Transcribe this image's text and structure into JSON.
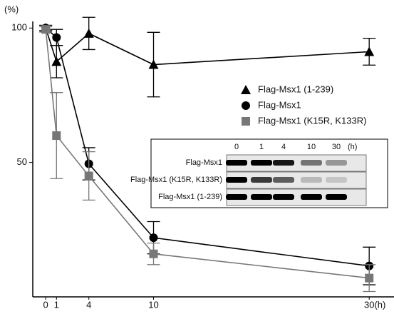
{
  "chart_data": {
    "type": "line",
    "y_unit": "(%)",
    "x": [
      0,
      1,
      4,
      10,
      30
    ],
    "xlim": [
      -1.2,
      32.3
    ],
    "ylim": [
      0,
      103
    ],
    "xticks": [
      0,
      1,
      4,
      10,
      {
        "value": 30,
        "label": "30(h)"
      }
    ],
    "yticks": [
      50,
      100
    ],
    "series": [
      {
        "name": "Flag-Msx1 (1-239)",
        "color": "#000000",
        "marker": "triangle",
        "values": [
          100,
          87.5,
          98,
          86.4,
          91.2
        ],
        "errors": [
          1,
          6,
          6,
          12,
          5
        ]
      },
      {
        "name": "Flag-Msx1",
        "color": "#000000",
        "marker": "circle",
        "values": [
          100,
          96.5,
          49.5,
          22,
          11.5
        ],
        "errors": [
          1,
          3,
          6,
          6,
          7
        ]
      },
      {
        "name": "Flag-Msx1 (K15R, K133R)",
        "color": "#777777",
        "marker": "square",
        "values": [
          99.5,
          60,
          45,
          16,
          7
        ],
        "errors": [
          1,
          16,
          9,
          4,
          5
        ]
      }
    ],
    "inset": {
      "lanes": [
        "0",
        "1",
        "4",
        "10",
        "30"
      ],
      "unit": "(h)",
      "rows": [
        "Flag-Msx1",
        "Flag-Msx1 (K15R, K133R)",
        "Flag-Msx1 (1-239)"
      ]
    }
  }
}
